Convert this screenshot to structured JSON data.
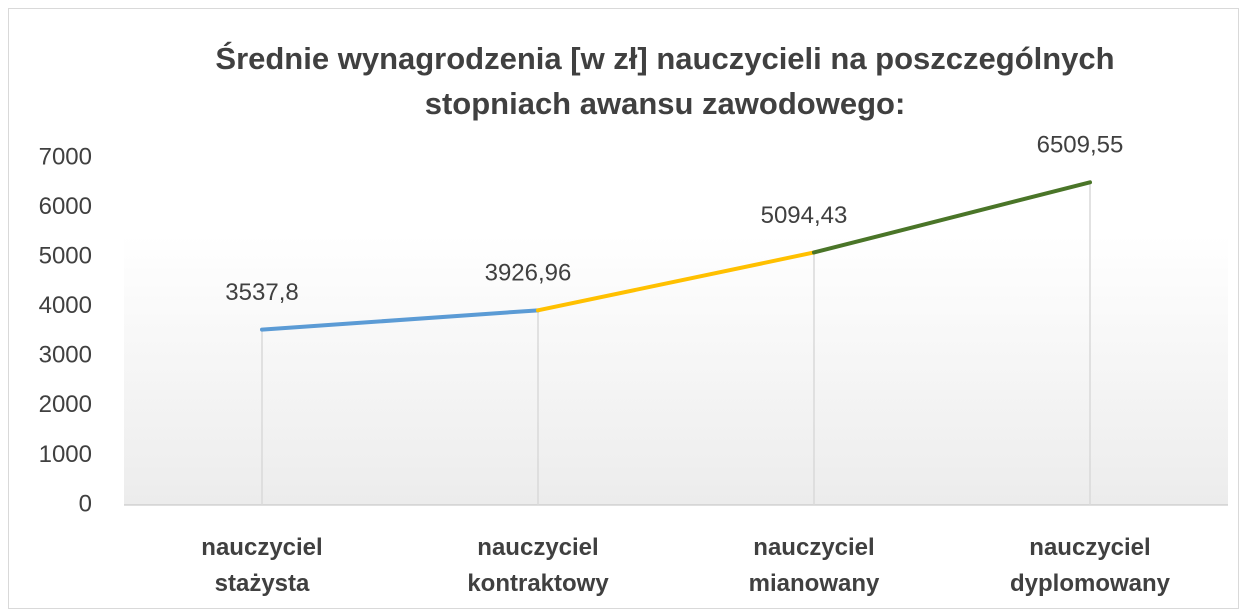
{
  "chart_data": {
    "type": "line",
    "title": "Średnie wynagrodzenia [w zł] nauczycieli na poszczególnych stopniach awansu zawodowego:",
    "categories": [
      "nauczyciel\nstażysta",
      "nauczyciel\nkontraktowy",
      "nauczyciel\nmianowany",
      "nauczyciel\ndyplomowany"
    ],
    "values": [
      3537.8,
      3926.96,
      5094.43,
      6509.55
    ],
    "value_labels": [
      "3537,8",
      "3926,96",
      "5094,43",
      "6509,55"
    ],
    "segment_colors": [
      "#5b9bd5",
      "#ffc000",
      "#4a7528"
    ],
    "ylim": [
      0,
      7000
    ],
    "yticks": [
      0,
      1000,
      2000,
      3000,
      4000,
      5000,
      6000,
      7000
    ],
    "drop_lines": true,
    "grid": false
  }
}
